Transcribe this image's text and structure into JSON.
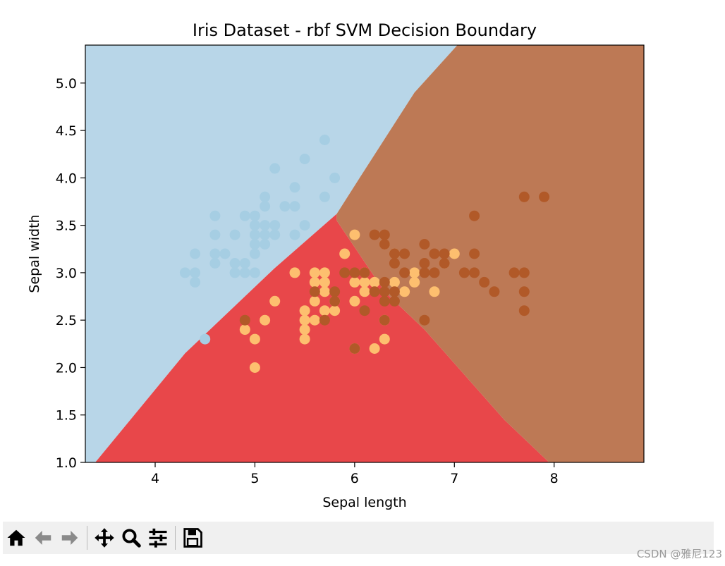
{
  "chart_data": {
    "type": "scatter",
    "title": "Iris Dataset - rbf SVM Decision Boundary",
    "xlabel": "Sepal length",
    "ylabel": "Sepal width",
    "xlim": [
      3.3,
      8.9
    ],
    "ylim": [
      1.0,
      5.4
    ],
    "xticks": [
      "4",
      "5",
      "6",
      "7",
      "8"
    ],
    "xtick_values": [
      4,
      5,
      6,
      7,
      8
    ],
    "yticks": [
      "1.0",
      "1.5",
      "2.0",
      "2.5",
      "3.0",
      "3.5",
      "4.0",
      "4.5",
      "5.0"
    ],
    "ytick_values": [
      1.0,
      1.5,
      2.0,
      2.5,
      3.0,
      3.5,
      4.0,
      4.5,
      5.0
    ],
    "grid": false,
    "regions": [
      {
        "color": "#b8d6e8",
        "polygon": [
          [
            3.3,
            1.0
          ],
          [
            3.3,
            5.4
          ],
          [
            7.03,
            5.4
          ],
          [
            6.6,
            4.9
          ],
          [
            6.05,
            4.0
          ],
          [
            5.82,
            3.62
          ],
          [
            5.2,
            3.05
          ],
          [
            4.3,
            2.15
          ],
          [
            3.4,
            1.0
          ]
        ]
      },
      {
        "color": "#e8474a",
        "polygon": [
          [
            3.4,
            1.0
          ],
          [
            4.3,
            2.15
          ],
          [
            5.2,
            3.05
          ],
          [
            5.82,
            3.62
          ],
          [
            5.82,
            3.55
          ],
          [
            6.3,
            2.8
          ],
          [
            6.7,
            2.4
          ],
          [
            7.5,
            1.45
          ],
          [
            7.95,
            1.0
          ]
        ]
      },
      {
        "color": "#bd7955",
        "polygon": [
          [
            5.82,
            3.62
          ],
          [
            6.05,
            4.0
          ],
          [
            6.6,
            4.9
          ],
          [
            7.03,
            5.4
          ],
          [
            8.9,
            5.4
          ],
          [
            8.9,
            1.0
          ],
          [
            7.95,
            1.0
          ],
          [
            7.5,
            1.45
          ],
          [
            6.7,
            2.4
          ],
          [
            6.3,
            2.8
          ],
          [
            5.82,
            3.55
          ]
        ]
      }
    ],
    "series": [
      {
        "color": "#a6cee3",
        "points": [
          [
            4.3,
            3.0
          ],
          [
            4.4,
            2.9
          ],
          [
            4.4,
            3.0
          ],
          [
            4.4,
            3.2
          ],
          [
            4.5,
            2.3
          ],
          [
            4.6,
            3.1
          ],
          [
            4.6,
            3.2
          ],
          [
            4.6,
            3.4
          ],
          [
            4.6,
            3.6
          ],
          [
            4.7,
            3.2
          ],
          [
            4.8,
            3.0
          ],
          [
            4.8,
            3.1
          ],
          [
            4.8,
            3.4
          ],
          [
            4.9,
            3.0
          ],
          [
            4.9,
            3.1
          ],
          [
            4.9,
            3.6
          ],
          [
            5.0,
            3.0
          ],
          [
            5.0,
            3.2
          ],
          [
            5.0,
            3.3
          ],
          [
            5.0,
            3.4
          ],
          [
            5.0,
            3.5
          ],
          [
            5.0,
            3.6
          ],
          [
            5.1,
            3.3
          ],
          [
            5.1,
            3.4
          ],
          [
            5.1,
            3.5
          ],
          [
            5.1,
            3.7
          ],
          [
            5.1,
            3.8
          ],
          [
            5.2,
            3.4
          ],
          [
            5.2,
            3.5
          ],
          [
            5.2,
            4.1
          ],
          [
            5.3,
            3.7
          ],
          [
            5.4,
            3.4
          ],
          [
            5.4,
            3.7
          ],
          [
            5.4,
            3.9
          ],
          [
            5.5,
            3.5
          ],
          [
            5.5,
            4.2
          ],
          [
            5.7,
            3.8
          ],
          [
            5.7,
            4.4
          ],
          [
            5.8,
            4.0
          ]
        ]
      },
      {
        "color": "#fdbf6f",
        "points": [
          [
            4.9,
            2.4
          ],
          [
            5.0,
            2.0
          ],
          [
            5.0,
            2.3
          ],
          [
            5.1,
            2.5
          ],
          [
            5.2,
            2.7
          ],
          [
            5.4,
            3.0
          ],
          [
            5.5,
            2.3
          ],
          [
            5.5,
            2.4
          ],
          [
            5.5,
            2.5
          ],
          [
            5.5,
            2.6
          ],
          [
            5.6,
            2.5
          ],
          [
            5.6,
            2.7
          ],
          [
            5.6,
            2.9
          ],
          [
            5.6,
            3.0
          ],
          [
            5.7,
            2.6
          ],
          [
            5.7,
            2.8
          ],
          [
            5.7,
            2.9
          ],
          [
            5.7,
            3.0
          ],
          [
            5.8,
            2.6
          ],
          [
            5.8,
            2.7
          ],
          [
            5.9,
            3.2
          ],
          [
            6.0,
            2.2
          ],
          [
            6.0,
            2.7
          ],
          [
            6.0,
            2.9
          ],
          [
            6.0,
            3.4
          ],
          [
            6.1,
            2.8
          ],
          [
            6.1,
            2.9
          ],
          [
            6.1,
            3.0
          ],
          [
            6.2,
            2.2
          ],
          [
            6.2,
            2.9
          ],
          [
            6.3,
            2.3
          ],
          [
            6.3,
            2.5
          ],
          [
            6.3,
            3.3
          ],
          [
            6.4,
            2.9
          ],
          [
            6.4,
            3.2
          ],
          [
            6.5,
            2.8
          ],
          [
            6.6,
            2.9
          ],
          [
            6.6,
            3.0
          ],
          [
            6.8,
            2.8
          ],
          [
            6.9,
            3.1
          ],
          [
            7.0,
            3.2
          ]
        ]
      },
      {
        "color": "#b15928",
        "points": [
          [
            4.9,
            2.5
          ],
          [
            5.6,
            2.8
          ],
          [
            5.7,
            2.5
          ],
          [
            5.8,
            2.7
          ],
          [
            5.8,
            2.8
          ],
          [
            5.9,
            3.0
          ],
          [
            6.0,
            2.2
          ],
          [
            6.0,
            3.0
          ],
          [
            6.1,
            2.6
          ],
          [
            6.1,
            3.0
          ],
          [
            6.2,
            2.8
          ],
          [
            6.2,
            3.4
          ],
          [
            6.3,
            2.5
          ],
          [
            6.3,
            2.7
          ],
          [
            6.3,
            2.8
          ],
          [
            6.3,
            2.9
          ],
          [
            6.3,
            3.3
          ],
          [
            6.3,
            3.4
          ],
          [
            6.4,
            2.7
          ],
          [
            6.4,
            2.8
          ],
          [
            6.4,
            3.1
          ],
          [
            6.4,
            3.2
          ],
          [
            6.5,
            3.0
          ],
          [
            6.5,
            3.2
          ],
          [
            6.7,
            2.5
          ],
          [
            6.7,
            3.0
          ],
          [
            6.7,
            3.1
          ],
          [
            6.7,
            3.3
          ],
          [
            6.8,
            3.0
          ],
          [
            6.8,
            3.2
          ],
          [
            6.9,
            3.1
          ],
          [
            6.9,
            3.2
          ],
          [
            7.1,
            3.0
          ],
          [
            7.2,
            3.0
          ],
          [
            7.2,
            3.2
          ],
          [
            7.2,
            3.6
          ],
          [
            7.3,
            2.9
          ],
          [
            7.4,
            2.8
          ],
          [
            7.6,
            3.0
          ],
          [
            7.7,
            2.6
          ],
          [
            7.7,
            2.8
          ],
          [
            7.7,
            3.0
          ],
          [
            7.7,
            3.8
          ],
          [
            7.9,
            3.8
          ]
        ]
      }
    ]
  },
  "toolbar": {
    "buttons": [
      {
        "name": "home-button",
        "icon": "home-icon"
      },
      {
        "name": "back-button",
        "icon": "arrow-left-icon"
      },
      {
        "name": "forward-button",
        "icon": "arrow-right-icon"
      },
      {
        "name": "pan-button",
        "icon": "move-icon"
      },
      {
        "name": "zoom-button",
        "icon": "magnifier-icon"
      },
      {
        "name": "configure-subplots-button",
        "icon": "sliders-icon"
      },
      {
        "name": "save-button",
        "icon": "floppy-disk-icon"
      }
    ]
  },
  "watermark": "CSDN @雅尼123"
}
